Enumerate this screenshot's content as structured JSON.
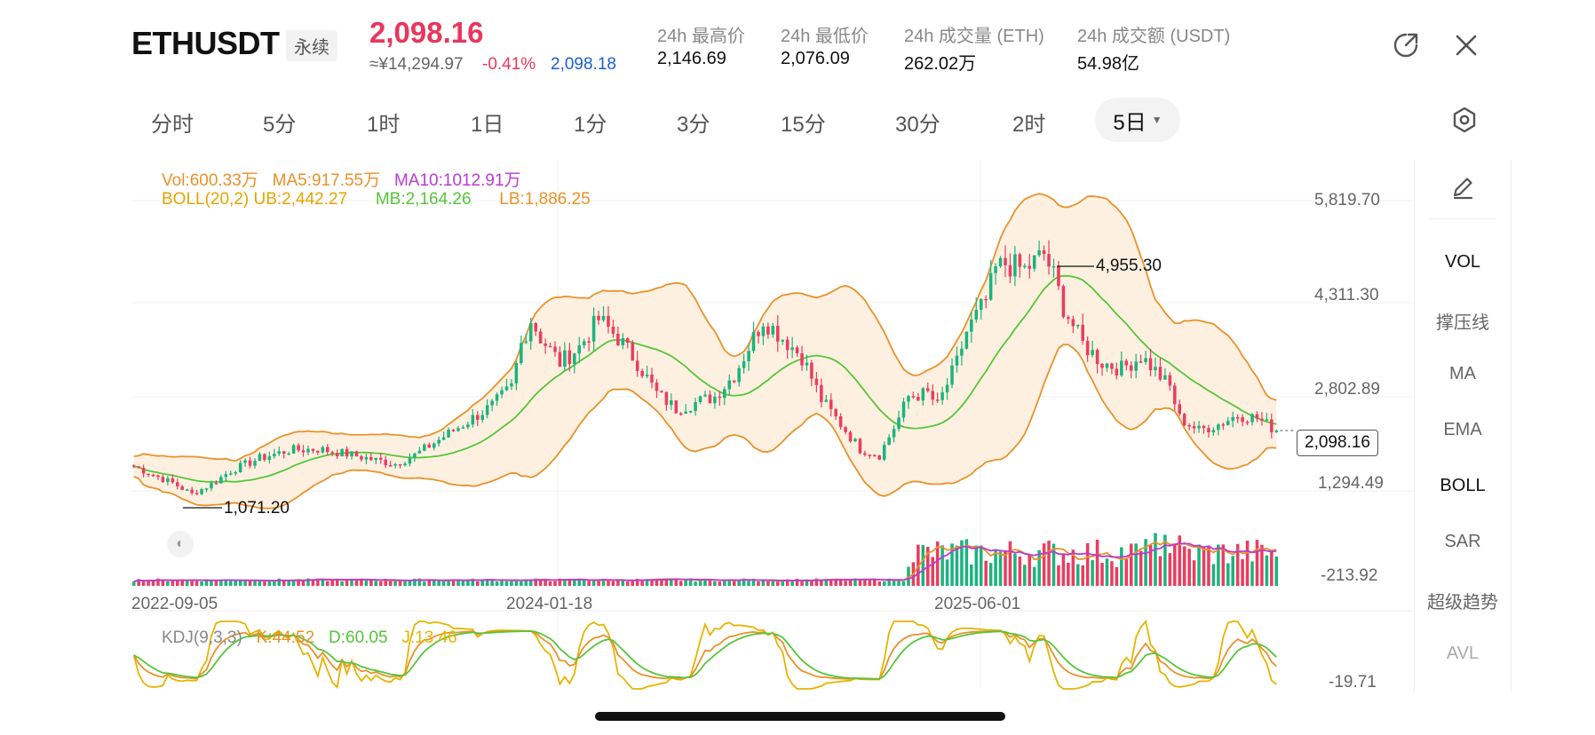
{
  "header": {
    "symbol": "ETHUSDT",
    "badge": "永续",
    "last_price": "2,098.16",
    "cny_price": "≈¥14,294.97",
    "change_pct": "-0.41%",
    "mark_price": "2,098.18",
    "stats": [
      {
        "label": "24h 最高价",
        "value": "2,146.69"
      },
      {
        "label": "24h 最低价",
        "value": "2,076.09"
      },
      {
        "label": "24h 成交量 (ETH)",
        "value": "262.02万"
      },
      {
        "label": "24h 成交额 (USDT)",
        "value": "54.98亿"
      }
    ],
    "icons": {
      "share": "share-icon",
      "close": "close-icon"
    }
  },
  "tabs": [
    "分时",
    "5分",
    "1时",
    "1日",
    "1分",
    "3分",
    "15分",
    "30分",
    "2时"
  ],
  "active_tab": "5日",
  "settings_icon": "settings-hexagon-icon",
  "side_menu": {
    "draw_icon": "pencil-draw-icon",
    "items": [
      "VOL",
      "撑压线",
      "MA",
      "EMA",
      "BOLL",
      "SAR",
      "超级趋势",
      "AVL"
    ]
  },
  "legend": {
    "vol": "Vol:600.33万",
    "ma5": "MA5:917.55万",
    "ma10": "MA10:1012.91万",
    "boll": "BOLL(20,2) UB:2,442.27",
    "mb": "MB:2,164.26",
    "lb": "LB:1,886.25",
    "kdj": "KDJ(9,3,3)",
    "k": "K:44.52",
    "d": "D:60.05",
    "j": "J:13.46"
  },
  "annotations": {
    "high": "4,955.30",
    "low": "1,071.20",
    "current": "2,098.16"
  },
  "colors": {
    "up": "#1cb37f",
    "down": "#ea3d5f",
    "accent_red": "#e8365d",
    "blue": "#1a5fd1",
    "boll_band": "#e8922a",
    "boll_fill": "#fdeedd",
    "mb_line": "#55c63a",
    "ma10": "#b83bd1",
    "kdj_j": "#e6b400"
  },
  "chart_data": {
    "type": "candlestick",
    "price_axis_labels": [
      "5,819.70",
      "4,311.30",
      "2,802.89",
      "1,294.49",
      "-213.92"
    ],
    "kdj_axis_label": "-19.71",
    "date_labels": [
      "2022-09-05",
      "2024-01-18",
      "2025-06-01"
    ],
    "ylim": [
      -213.92,
      5819.7
    ],
    "current_price": 2098.16,
    "highest_marked": 4955.3,
    "lowest_marked": 1071.2,
    "price_path": [
      [
        0,
        1520
      ],
      [
        4,
        1380
      ],
      [
        8,
        1250
      ],
      [
        12,
        1071.2
      ],
      [
        16,
        1230
      ],
      [
        20,
        1450
      ],
      [
        26,
        1650
      ],
      [
        32,
        1780
      ],
      [
        38,
        1800
      ],
      [
        44,
        1720
      ],
      [
        50,
        1620
      ],
      [
        54,
        1560
      ],
      [
        58,
        1700
      ],
      [
        64,
        2000
      ],
      [
        70,
        2300
      ],
      [
        74,
        2500
      ],
      [
        78,
        2800
      ],
      [
        80,
        3500
      ],
      [
        82,
        3900
      ],
      [
        84,
        3600
      ],
      [
        88,
        3200
      ],
      [
        92,
        3450
      ],
      [
        96,
        3900
      ],
      [
        100,
        3600
      ],
      [
        104,
        3200
      ],
      [
        108,
        2700
      ],
      [
        112,
        2450
      ],
      [
        116,
        2550
      ],
      [
        120,
        2650
      ],
      [
        124,
        3000
      ],
      [
        128,
        3600
      ],
      [
        130,
        3900
      ],
      [
        134,
        3600
      ],
      [
        138,
        3300
      ],
      [
        142,
        2600
      ],
      [
        146,
        2200
      ],
      [
        150,
        1800
      ],
      [
        154,
        1700
      ],
      [
        158,
        2300
      ],
      [
        160,
        2650
      ],
      [
        164,
        2700
      ],
      [
        166,
        2500
      ],
      [
        170,
        3200
      ],
      [
        172,
        3700
      ],
      [
        176,
        4200
      ],
      [
        178,
        4700
      ],
      [
        180,
        4800
      ],
      [
        184,
        4700
      ],
      [
        188,
        4955.3
      ],
      [
        190,
        4600
      ],
      [
        192,
        4100
      ],
      [
        196,
        3500
      ],
      [
        200,
        3200
      ],
      [
        204,
        3100
      ],
      [
        208,
        3300
      ],
      [
        210,
        3150
      ],
      [
        214,
        2800
      ],
      [
        216,
        2300
      ],
      [
        220,
        2100
      ],
      [
        224,
        2200
      ],
      [
        228,
        2350
      ],
      [
        232,
        2300
      ],
      [
        236,
        2098.16
      ]
    ]
  }
}
